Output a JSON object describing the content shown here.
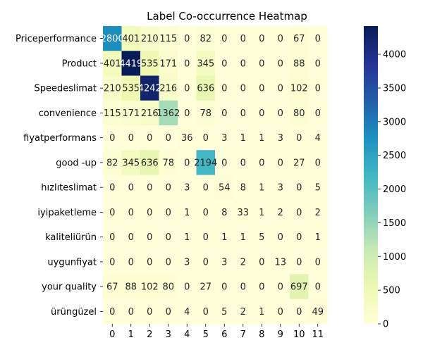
{
  "chart_data": {
    "type": "heatmap",
    "title": "Label Co-occurrence Heatmap",
    "xlabel": "",
    "ylabel": "",
    "row_labels": [
      "Priceperformance",
      "Product",
      "Speedeslimat",
      "convenience",
      "fiyatperformans",
      "good -up",
      "hızlıteslimat",
      "iyipaketleme",
      "kaliteliürün",
      "uygunfiyat",
      "your quality",
      "ürüngüzel"
    ],
    "col_labels": [
      "0",
      "1",
      "2",
      "3",
      "4",
      "5",
      "6",
      "7",
      "8",
      "9",
      "10",
      "11"
    ],
    "values": [
      [
        2800,
        401,
        210,
        115,
        0,
        82,
        0,
        0,
        0,
        0,
        67,
        0
      ],
      [
        401,
        4419,
        535,
        171,
        0,
        345,
        0,
        0,
        0,
        0,
        88,
        0
      ],
      [
        210,
        535,
        4242,
        216,
        0,
        636,
        0,
        0,
        0,
        0,
        102,
        0
      ],
      [
        115,
        171,
        216,
        1362,
        0,
        78,
        0,
        0,
        0,
        0,
        80,
        0
      ],
      [
        0,
        0,
        0,
        0,
        36,
        0,
        3,
        1,
        1,
        3,
        0,
        4
      ],
      [
        82,
        345,
        636,
        78,
        0,
        2194,
        0,
        0,
        0,
        0,
        27,
        0
      ],
      [
        0,
        0,
        0,
        0,
        3,
        0,
        54,
        8,
        1,
        3,
        0,
        5
      ],
      [
        0,
        0,
        0,
        0,
        1,
        0,
        8,
        33,
        1,
        2,
        0,
        2
      ],
      [
        0,
        0,
        0,
        0,
        1,
        0,
        1,
        1,
        5,
        0,
        0,
        1
      ],
      [
        0,
        0,
        0,
        0,
        3,
        0,
        3,
        2,
        0,
        13,
        0,
        0
      ],
      [
        67,
        88,
        102,
        80,
        0,
        27,
        0,
        0,
        0,
        0,
        697,
        0
      ],
      [
        0,
        0,
        0,
        0,
        4,
        0,
        5,
        2,
        1,
        0,
        0,
        49
      ]
    ],
    "colorbar": {
      "colormap": "YlGnBu",
      "range": [
        0,
        4419
      ],
      "ticks": [
        "0",
        "500",
        "1000",
        "1500",
        "2000",
        "2500",
        "3000",
        "3500",
        "4000"
      ]
    }
  }
}
